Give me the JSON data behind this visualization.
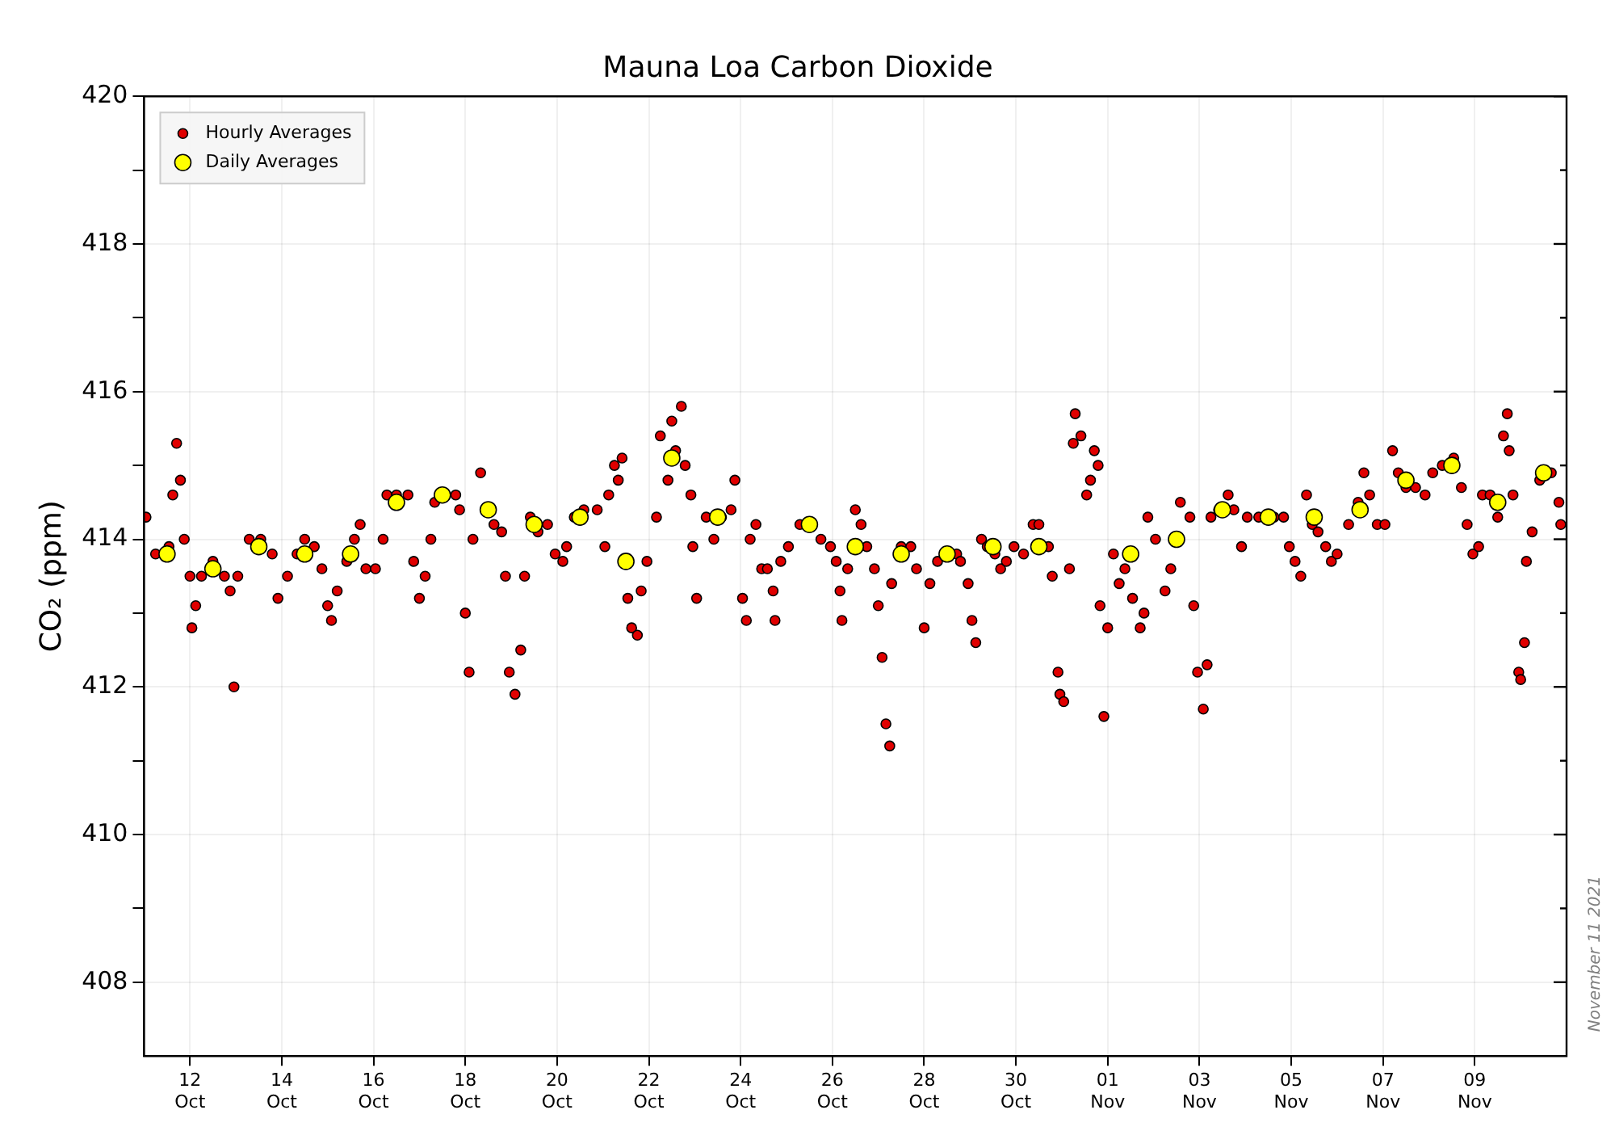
{
  "chart_data": {
    "type": "scatter",
    "title": "Mauna Loa Carbon Dioxide",
    "ylabel": "CO₂ (ppm)",
    "annotations": [
      "November 11 2021"
    ],
    "xlim": [
      "2021-10-11",
      "2021-11-11"
    ],
    "xticks": [
      {
        "value": "2021-10-12",
        "label": "12\nOct"
      },
      {
        "value": "2021-10-14",
        "label": "14\nOct"
      },
      {
        "value": "2021-10-16",
        "label": "16\nOct"
      },
      {
        "value": "2021-10-18",
        "label": "18\nOct"
      },
      {
        "value": "2021-10-20",
        "label": "20\nOct"
      },
      {
        "value": "2021-10-22",
        "label": "22\nOct"
      },
      {
        "value": "2021-10-24",
        "label": "24\nOct"
      },
      {
        "value": "2021-10-26",
        "label": "26\nOct"
      },
      {
        "value": "2021-10-28",
        "label": "28\nOct"
      },
      {
        "value": "2021-10-30",
        "label": "30\nOct"
      },
      {
        "value": "2021-11-01",
        "label": "01\nNov"
      },
      {
        "value": "2021-11-03",
        "label": "03\nNov"
      },
      {
        "value": "2021-11-05",
        "label": "05\nNov"
      },
      {
        "value": "2021-11-07",
        "label": "07\nNov"
      },
      {
        "value": "2021-11-09",
        "label": "09\nNov"
      }
    ],
    "ylim": [
      407,
      420
    ],
    "yticks": [
      408,
      {
        "value": 409,
        "label": null
      },
      410,
      {
        "value": 411,
        "label": null
      },
      412,
      {
        "value": 413,
        "label": null
      },
      414,
      {
        "value": 415,
        "label": null
      },
      416,
      {
        "value": 417,
        "label": null
      },
      418,
      {
        "value": 419,
        "label": null
      },
      420
    ],
    "grid": true,
    "legend": "top left",
    "marker": "circle",
    "series": [
      {
        "name": "Hourly Averages",
        "color": "#e00000",
        "x": [
          "2021-10-11T01:00",
          "2021-10-11T06:00",
          "2021-10-11T13:00",
          "2021-10-11T15:00",
          "2021-10-11T17:00",
          "2021-10-11T19:00",
          "2021-10-11T21:00",
          "2021-10-12T00:00",
          "2021-10-12T01:00",
          "2021-10-12T03:00",
          "2021-10-12T06:00",
          "2021-10-12T12:00",
          "2021-10-12T18:00",
          "2021-10-12T21:00",
          "2021-10-12T23:00",
          "2021-10-13T01:00",
          "2021-10-13T07:00",
          "2021-10-13T13:00",
          "2021-10-13T19:00",
          "2021-10-13T22:00",
          "2021-10-14T03:00",
          "2021-10-14T08:00",
          "2021-10-14T12:00",
          "2021-10-14T17:00",
          "2021-10-14T21:00",
          "2021-10-15T00:00",
          "2021-10-15T02:00",
          "2021-10-15T05:00",
          "2021-10-15T10:00",
          "2021-10-15T14:00",
          "2021-10-15T17:00",
          "2021-10-15T20:00",
          "2021-10-16T01:00",
          "2021-10-16T05:00",
          "2021-10-16T07:00",
          "2021-10-16T12:00",
          "2021-10-16T18:00",
          "2021-10-16T21:00",
          "2021-10-17T00:00",
          "2021-10-17T03:00",
          "2021-10-17T06:00",
          "2021-10-17T08:00",
          "2021-10-17T14:00",
          "2021-10-17T19:00",
          "2021-10-17T21:00",
          "2021-10-18T00:00",
          "2021-10-18T02:00",
          "2021-10-18T04:00",
          "2021-10-18T08:00",
          "2021-10-18T11:00",
          "2021-10-18T15:00",
          "2021-10-18T19:00",
          "2021-10-18T21:00",
          "2021-10-18T23:00",
          "2021-10-19T02:00",
          "2021-10-19T05:00",
          "2021-10-19T07:00",
          "2021-10-19T10:00",
          "2021-10-19T14:00",
          "2021-10-19T19:00",
          "2021-10-19T23:00",
          "2021-10-20T03:00",
          "2021-10-20T05:00",
          "2021-10-20T09:00",
          "2021-10-20T14:00",
          "2021-10-20T21:00",
          "2021-10-21T01:00",
          "2021-10-21T03:00",
          "2021-10-21T06:00",
          "2021-10-21T08:00",
          "2021-10-21T10:00",
          "2021-10-21T13:00",
          "2021-10-21T15:00",
          "2021-10-21T18:00",
          "2021-10-21T20:00",
          "2021-10-21T23:00",
          "2021-10-22T04:00",
          "2021-10-22T06:00",
          "2021-10-22T10:00",
          "2021-10-22T12:00",
          "2021-10-22T14:00",
          "2021-10-22T17:00",
          "2021-10-22T19:00",
          "2021-10-22T22:00",
          "2021-10-22T23:00",
          "2021-10-23T01:00",
          "2021-10-23T06:00",
          "2021-10-23T10:00",
          "2021-10-23T14:00",
          "2021-10-23T19:00",
          "2021-10-23T21:00",
          "2021-10-24T01:00",
          "2021-10-24T03:00",
          "2021-10-24T05:00",
          "2021-10-24T08:00",
          "2021-10-24T11:00",
          "2021-10-24T14:00",
          "2021-10-24T17:00",
          "2021-10-24T18:00",
          "2021-10-24T21:00",
          "2021-10-25T01:00",
          "2021-10-25T07:00",
          "2021-10-25T13:00",
          "2021-10-25T18:00",
          "2021-10-25T23:00",
          "2021-10-26T02:00",
          "2021-10-26T04:00",
          "2021-10-26T05:00",
          "2021-10-26T08:00",
          "2021-10-26T12:00",
          "2021-10-26T15:00",
          "2021-10-26T18:00",
          "2021-10-26T22:00",
          "2021-10-27T00:00",
          "2021-10-27T02:00",
          "2021-10-27T04:00",
          "2021-10-27T06:00",
          "2021-10-27T07:00",
          "2021-10-27T12:00",
          "2021-10-27T17:00",
          "2021-10-27T20:00",
          "2021-10-28T00:00",
          "2021-10-28T03:00",
          "2021-10-28T07:00",
          "2021-10-28T12:00",
          "2021-10-28T17:00",
          "2021-10-28T19:00",
          "2021-10-28T23:00",
          "2021-10-29T01:00",
          "2021-10-29T03:00",
          "2021-10-29T06:00",
          "2021-10-29T09:00",
          "2021-10-29T13:00",
          "2021-10-29T16:00",
          "2021-10-29T19:00",
          "2021-10-29T23:00",
          "2021-10-30T04:00",
          "2021-10-30T09:00",
          "2021-10-30T12:00",
          "2021-10-30T17:00",
          "2021-10-30T19:00",
          "2021-10-30T22:00",
          "2021-10-30T23:00",
          "2021-10-31T01:00",
          "2021-10-31T04:00",
          "2021-10-31T06:00",
          "2021-10-31T07:00",
          "2021-10-31T10:00",
          "2021-10-31T13:00",
          "2021-10-31T15:00",
          "2021-10-31T17:00",
          "2021-10-31T19:00",
          "2021-10-31T20:00",
          "2021-10-31T22:00",
          "2021-11-01T00:00",
          "2021-11-01T03:00",
          "2021-11-01T06:00",
          "2021-11-01T09:00",
          "2021-11-01T13:00",
          "2021-11-01T17:00",
          "2021-11-01T19:00",
          "2021-11-01T21:00",
          "2021-11-02T01:00",
          "2021-11-02T06:00",
          "2021-11-02T09:00",
          "2021-11-02T14:00",
          "2021-11-02T19:00",
          "2021-11-02T21:00",
          "2021-11-02T23:00",
          "2021-11-03T02:00",
          "2021-11-03T04:00",
          "2021-11-03T06:00",
          "2021-11-03T10:00",
          "2021-11-03T15:00",
          "2021-11-03T18:00",
          "2021-11-03T22:00",
          "2021-11-04T01:00",
          "2021-11-04T07:00",
          "2021-11-04T15:00",
          "2021-11-04T20:00",
          "2021-11-04T23:00",
          "2021-11-05T02:00",
          "2021-11-05T05:00",
          "2021-11-05T08:00",
          "2021-11-05T11:00",
          "2021-11-05T14:00",
          "2021-11-05T18:00",
          "2021-11-05T21:00",
          "2021-11-06T00:00",
          "2021-11-06T06:00",
          "2021-11-06T11:00",
          "2021-11-06T14:00",
          "2021-11-06T17:00",
          "2021-11-06T21:00",
          "2021-11-07T01:00",
          "2021-11-07T05:00",
          "2021-11-07T08:00",
          "2021-11-07T12:00",
          "2021-11-07T17:00",
          "2021-11-07T22:00",
          "2021-11-08T02:00",
          "2021-11-08T07:00",
          "2021-11-08T13:00",
          "2021-11-08T17:00",
          "2021-11-08T20:00",
          "2021-11-08T23:00",
          "2021-11-09T02:00",
          "2021-11-09T04:00",
          "2021-11-09T08:00",
          "2021-11-09T12:00",
          "2021-11-09T15:00",
          "2021-11-09T17:00",
          "2021-11-09T18:00",
          "2021-11-09T20:00",
          "2021-11-09T23:00",
          "2021-11-10T00:00",
          "2021-11-10T02:00",
          "2021-11-10T03:00",
          "2021-11-10T06:00",
          "2021-11-10T10:00",
          "2021-11-10T16:00",
          "2021-11-10T20:00",
          "2021-11-10T21:00"
        ],
        "values": [
          414.3,
          413.8,
          413.9,
          414.6,
          415.3,
          414.8,
          414.0,
          413.5,
          412.8,
          413.1,
          413.5,
          413.7,
          413.5,
          413.3,
          412.0,
          413.5,
          414.0,
          414.0,
          413.8,
          413.2,
          413.5,
          413.8,
          414.0,
          413.9,
          413.6,
          413.1,
          412.9,
          413.3,
          413.7,
          414.0,
          414.2,
          413.6,
          413.6,
          414.0,
          414.6,
          414.6,
          414.6,
          413.7,
          413.2,
          413.5,
          414.0,
          414.5,
          null,
          414.6,
          414.4,
          413.0,
          412.2,
          414.0,
          414.9,
          null,
          414.2,
          414.1,
          413.5,
          412.2,
          411.9,
          412.5,
          413.5,
          414.3,
          414.1,
          414.2,
          413.8,
          413.7,
          413.9,
          414.3,
          414.4,
          414.4,
          413.9,
          414.6,
          415.0,
          414.8,
          415.1,
          413.2,
          412.8,
          412.7,
          413.3,
          413.7,
          414.3,
          415.4,
          414.8,
          415.6,
          415.2,
          415.8,
          415.0,
          414.6,
          413.9,
          413.2,
          414.3,
          414.0,
          414.3,
          414.4,
          414.8,
          413.2,
          412.9,
          414.0,
          414.2,
          413.6,
          413.6,
          413.3,
          412.9,
          413.7,
          413.9,
          414.2,
          null,
          414.0,
          413.9,
          413.7,
          413.3,
          412.9,
          413.6,
          414.4,
          414.2,
          413.9,
          413.6,
          413.1,
          412.4,
          411.5,
          411.2,
          413.4,
          413.9,
          413.9,
          413.6,
          412.8,
          413.4,
          413.7,
          null,
          413.8,
          413.7,
          413.4,
          412.9,
          412.6,
          414.0,
          413.9,
          413.8,
          413.6,
          413.7,
          413.9,
          413.8,
          414.2,
          414.2,
          413.9,
          413.5,
          412.2,
          411.9,
          411.8,
          413.6,
          415.3,
          415.7,
          415.4,
          414.6,
          414.8,
          415.2,
          415.0,
          413.1,
          411.6,
          412.8,
          413.8,
          413.4,
          413.6,
          413.2,
          412.8,
          413.0,
          414.3,
          414.0,
          413.3,
          413.6,
          414.5,
          414.3,
          413.1,
          412.2,
          411.7,
          412.3,
          414.3,
          414.4,
          414.6,
          414.4,
          413.9,
          414.3,
          414.3,
          414.3,
          414.3,
          413.9,
          413.7,
          413.5,
          414.6,
          414.2,
          414.1,
          413.9,
          413.7,
          413.8,
          414.2,
          414.5,
          414.9,
          414.6,
          414.2,
          414.2,
          415.2,
          414.9,
          414.7,
          414.7,
          414.6,
          414.9,
          415.0,
          415.1,
          414.7,
          414.2,
          413.8,
          413.9,
          414.6,
          414.6,
          414.3,
          415.4,
          415.7,
          415.2,
          414.6,
          412.2,
          412.1,
          412.6,
          413.7,
          414.1,
          414.8,
          414.9,
          414.5,
          414.2
        ]
      },
      {
        "name": "Daily Averages",
        "color": "#ffff00",
        "x": [
          "2021-10-11T12:00",
          "2021-10-12T12:00",
          "2021-10-13T12:00",
          "2021-10-14T12:00",
          "2021-10-15T12:00",
          "2021-10-16T12:00",
          "2021-10-17T12:00",
          "2021-10-18T12:00",
          "2021-10-19T12:00",
          "2021-10-20T12:00",
          "2021-10-21T12:00",
          "2021-10-22T12:00",
          "2021-10-23T12:00",
          "2021-10-25T12:00",
          "2021-10-26T12:00",
          "2021-10-27T12:00",
          "2021-10-28T12:00",
          "2021-10-29T12:00",
          "2021-10-30T12:00",
          "2021-11-01T12:00",
          "2021-11-02T12:00",
          "2021-11-03T12:00",
          "2021-11-04T12:00",
          "2021-11-05T12:00",
          "2021-11-06T12:00",
          "2021-11-07T12:00",
          "2021-11-08T12:00",
          "2021-11-09T12:00",
          "2021-11-10T12:00"
        ],
        "values": [
          413.8,
          413.6,
          413.9,
          413.8,
          413.8,
          414.5,
          414.6,
          414.4,
          414.2,
          414.3,
          413.7,
          415.1,
          414.3,
          414.2,
          413.9,
          413.8,
          413.8,
          413.9,
          413.9,
          413.8,
          414.0,
          414.4,
          414.3,
          414.3,
          414.4,
          414.8,
          415.0,
          414.5,
          414.9
        ]
      }
    ]
  }
}
